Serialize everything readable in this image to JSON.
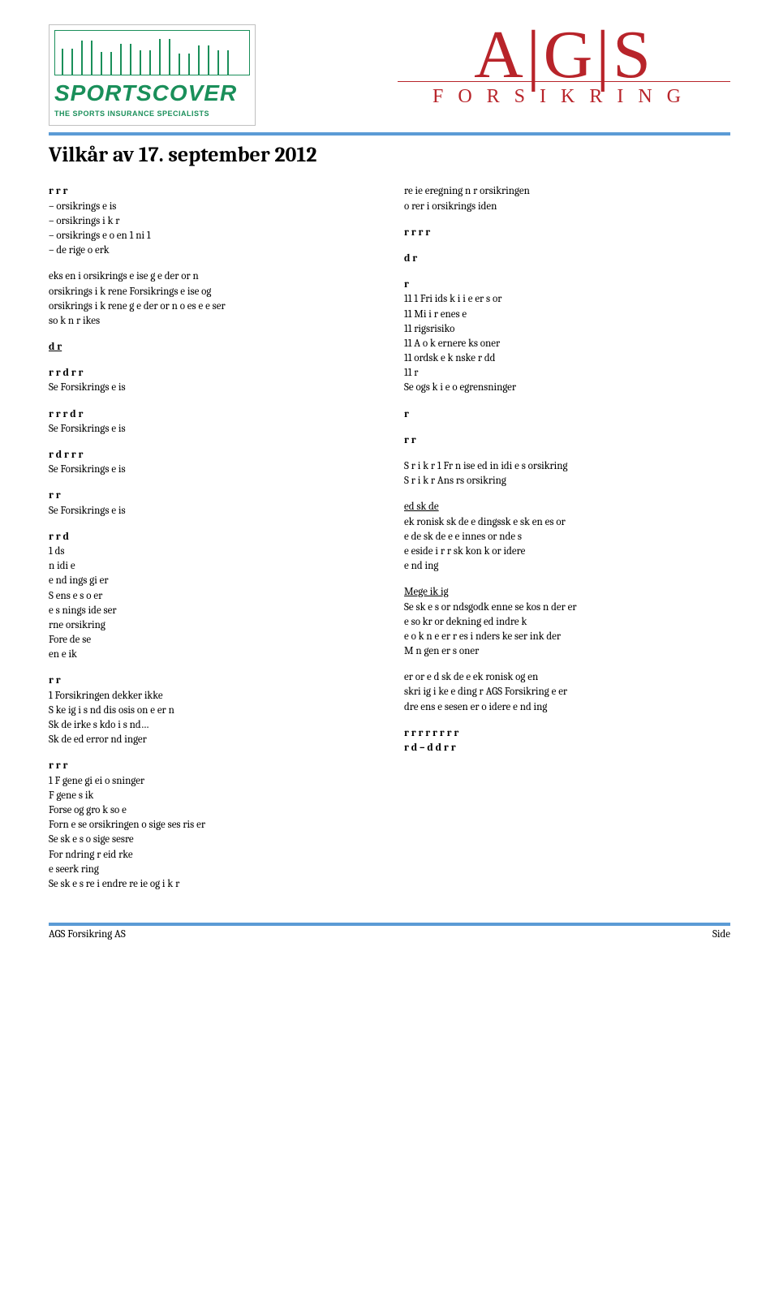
{
  "header": {
    "sportscover_brand": "SPORTSCOVER",
    "sportscover_tag": "THE SPORTS INSURANCE SPECIALISTS",
    "ags_letters": "A|G|S",
    "ags_sub": "FORSIKRING"
  },
  "title": "Vilkår av 17. september 2012",
  "left": {
    "b1": [
      {
        "t": "r  r                    r",
        "b": true
      },
      {
        "t": "– orsikrings e is"
      },
      {
        "t": "– orsikrings i k r"
      },
      {
        "t": "– orsikrings    e o en    1    ni 1"
      },
      {
        "t": "– de  rige o erk"
      }
    ],
    "b2": [
      {
        "t": "eks en i orsikrings e ise g e der or n"
      },
      {
        "t": "orsikrings i k rene Forsikrings e ise  og"
      },
      {
        "t": "orsikrings i k rene g e der or n o  es e    e ser"
      },
      {
        "t": "so  k n r ikes"
      }
    ],
    "b3": [
      {
        "t": "         d  r          ",
        "b": true,
        "u": true
      }
    ],
    "b4": [
      {
        "t": "       r  r       d  r  r",
        "b": true
      },
      {
        "t": "Se Forsikrings e is"
      }
    ],
    "b5": [
      {
        "t": "    r  r  r       d  r",
        "b": true
      },
      {
        "t": "Se Forsikrings e is"
      }
    ],
    "b6": [
      {
        "t": "    r   d  r  r  r",
        "b": true
      },
      {
        "t": "Se Forsikrings e is"
      }
    ],
    "b7": [
      {
        "t": "       r  r",
        "b": true
      },
      {
        "t": "Se Forsikrings e is"
      }
    ],
    "b8": [
      {
        "t": "  r               r   d",
        "b": true
      },
      {
        "t": "1      ds"
      },
      {
        "t": "   n   idi e"
      },
      {
        "t": "   e   nd ings gi er"
      },
      {
        "t": "   S     ens e s     o er"
      },
      {
        "t": "   e s nings ide ser"
      },
      {
        "t": "    rne orsikring"
      },
      {
        "t": "   Fore de se"
      },
      {
        "t": "    en e ik"
      }
    ],
    "b9": [
      {
        "t": "    r        r",
        "b": true
      },
      {
        "t": "1 Forsikringen dekker ikke"
      },
      {
        "t": "   S ke ig i s nd dis osis on e er     n"
      },
      {
        "t": "   Sk de    irke   s kdo   i s nd…"
      },
      {
        "t": "   Sk de  ed  error nd inger"
      }
    ],
    "b10": [
      {
        "t": "                r     r  r",
        "b": true
      },
      {
        "t": "1  F  gene     gi ei o   sninger"
      },
      {
        "t": "   F  gene   s ik"
      },
      {
        "t": "   Forse  og gro   k so    e"
      },
      {
        "t": "   Forn e se     orsikringen  o  sige ses ris er"
      },
      {
        "t": "   Se sk   e s o  sige sesre"
      },
      {
        "t": "   For ndring   r eid    rke"
      },
      {
        "t": "    e seerk  ring"
      },
      {
        "t": "   Se sk   e s re   i   endre re ie og i k r"
      }
    ]
  },
  "right": {
    "b1": [
      {
        "t": "    re ie eregning n r orsikringen"
      },
      {
        "t": "   o     rer i orsikrings iden"
      }
    ],
    "b2": [
      {
        "t": "        r      r  r  r",
        "b": true
      }
    ],
    "b3": [
      {
        "t": "                   d          r",
        "b": true
      }
    ],
    "b4": [
      {
        "t": "                           r",
        "b": true
      },
      {
        "t": "11 1 Fri ids k i i e er  s or"
      },
      {
        "t": "11    Mi i  r enes e"
      },
      {
        "t": "11    rigsrisiko"
      },
      {
        "t": "11    A o  k ernere ks oner"
      },
      {
        "t": "11    ordsk e      k nske    r dd"
      },
      {
        "t": "11        r"
      },
      {
        "t": "Se ogs  k  i e o   egrensninger"
      }
    ],
    "b5": [
      {
        "t": "                                     r",
        "b": true
      }
    ],
    "b6": [
      {
        "t": "         r       r",
        "b": true
      }
    ],
    "b7": [
      {
        "t": "S  r i k r 1  Fr n  ise  ed in   idi e s orsikring"
      },
      {
        "t": "S  r i k r    Ans rs orsikring"
      }
    ],
    "b8": [
      {
        "t": " ed sk de",
        "u": true
      },
      {
        "t": " ek ronisk sk de e dingssk e   sk    en   es or"
      },
      {
        "t": " e de sk de  e e innes     or nde s"
      },
      {
        "t": " e    eside   i r r sk kon k  or idere"
      },
      {
        "t": " e   nd ing"
      }
    ],
    "b9": [
      {
        "t": "Mege   ik ig",
        "u": true
      },
      {
        "t": "Se sk   e s or ndsgodk enne se    kos n der er"
      },
      {
        "t": "e   so    kr   or dekning  ed  indre k"
      },
      {
        "t": " e o  k n e er r es i   nders ke ser ink  der"
      },
      {
        "t": "M      n gen    er s oner"
      }
    ],
    "b10": [
      {
        "t": " er or   e d sk de e ek ronisk og   en"
      },
      {
        "t": "skri ig i  ke e ding r  AGS Forsikring e er"
      },
      {
        "t": " dre ens e sesen er o   idere e  nd ing"
      }
    ],
    "b11": [
      {
        "t": "       r  r       r  r       r  r    r   r",
        "b": true
      },
      {
        "t": "   r         d –   d   d        r  r",
        "b": true
      }
    ]
  },
  "footer": {
    "left": "AGS Forsikring AS",
    "right": "Side"
  },
  "colors": {
    "rule": "#5b9bd5",
    "ags_red": "#b8242a",
    "sc_green": "#1a8f5a"
  }
}
